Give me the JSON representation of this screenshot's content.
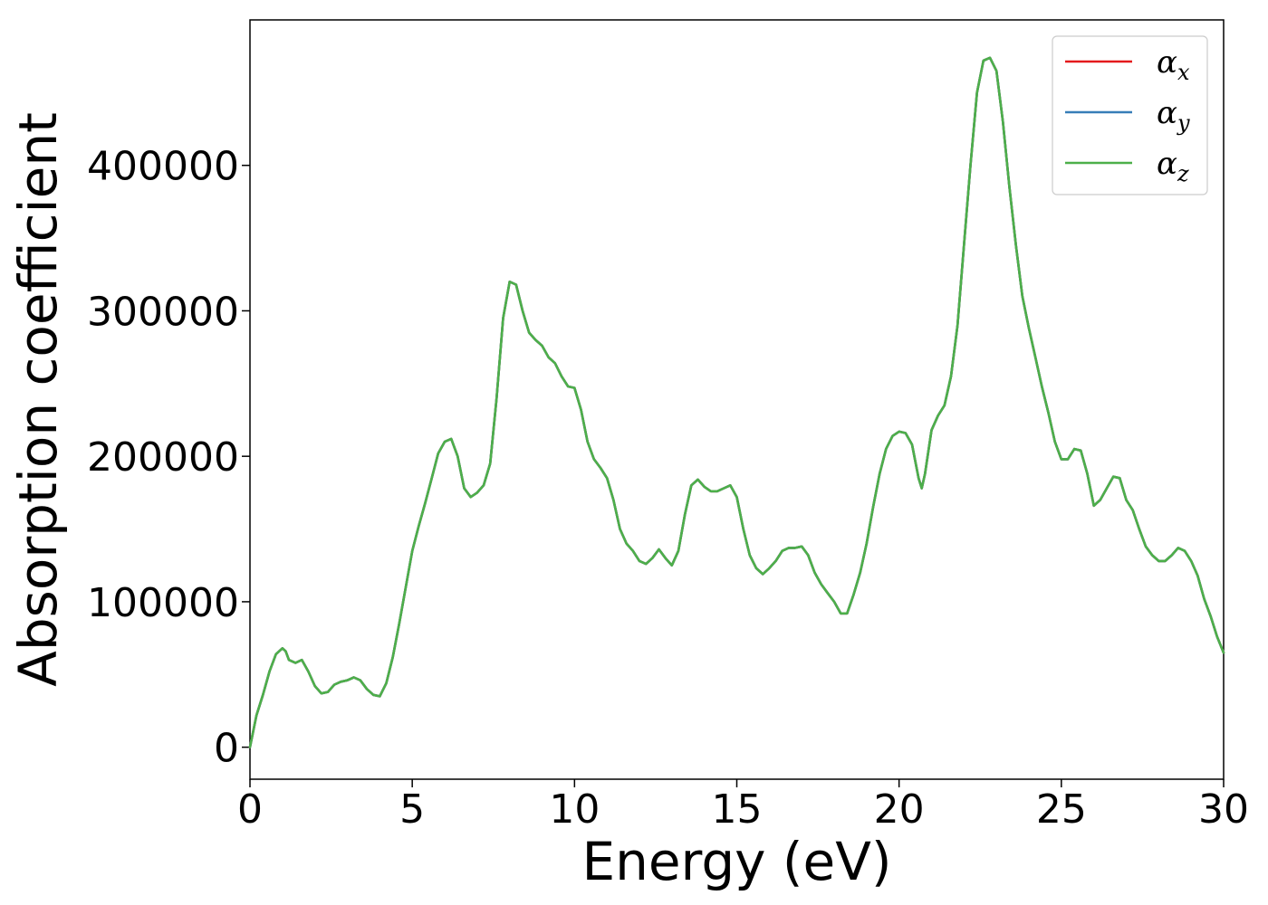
{
  "chart_data": {
    "type": "line",
    "xlabel": "Energy (eV)",
    "ylabel": "Absorption coefficient",
    "xlim": [
      0,
      30
    ],
    "ylim": [
      -22000,
      500000
    ],
    "x_ticks": [
      0,
      5,
      10,
      15,
      20,
      25,
      30
    ],
    "x_tick_labels": [
      "0",
      "5",
      "10",
      "15",
      "20",
      "25",
      "30"
    ],
    "y_ticks": [
      0,
      100000,
      200000,
      300000,
      400000
    ],
    "y_tick_labels": [
      "0",
      "100000",
      "200000",
      "300000",
      "400000"
    ],
    "grid": false,
    "legend_position": "top-right",
    "series": [
      {
        "legend_base": "α",
        "legend_sub": "x",
        "color": "#e41a1c",
        "x": [
          0,
          0.2,
          0.4,
          0.6,
          0.8,
          1.0,
          1.1,
          1.2,
          1.4,
          1.6,
          1.8,
          2.0,
          2.2,
          2.4,
          2.6,
          2.8,
          3.0,
          3.2,
          3.4,
          3.6,
          3.8,
          4.0,
          4.2,
          4.4,
          4.6,
          4.8,
          5.0,
          5.2,
          5.4,
          5.6,
          5.8,
          6.0,
          6.2,
          6.4,
          6.6,
          6.8,
          7.0,
          7.2,
          7.4,
          7.6,
          7.8,
          8.0,
          8.2,
          8.4,
          8.6,
          8.8,
          9.0,
          9.2,
          9.4,
          9.6,
          9.8,
          10.0,
          10.2,
          10.4,
          10.6,
          10.8,
          11.0,
          11.2,
          11.4,
          11.6,
          11.8,
          12.0,
          12.2,
          12.4,
          12.6,
          12.8,
          13.0,
          13.2,
          13.4,
          13.6,
          13.8,
          14.0,
          14.2,
          14.4,
          14.6,
          14.8,
          15.0,
          15.2,
          15.4,
          15.6,
          15.8,
          16.0,
          16.2,
          16.4,
          16.6,
          16.8,
          17.0,
          17.2,
          17.4,
          17.6,
          17.8,
          18.0,
          18.2,
          18.4,
          18.6,
          18.8,
          19.0,
          19.2,
          19.4,
          19.6,
          19.8,
          20.0,
          20.2,
          20.4,
          20.6,
          20.7,
          20.8,
          21.0,
          21.2,
          21.4,
          21.6,
          21.8,
          22.0,
          22.2,
          22.4,
          22.6,
          22.8,
          23.0,
          23.2,
          23.4,
          23.6,
          23.8,
          24.0,
          24.2,
          24.4,
          24.6,
          24.8,
          25.0,
          25.2,
          25.4,
          25.6,
          25.8,
          26.0,
          26.2,
          26.4,
          26.6,
          26.8,
          27.0,
          27.2,
          27.4,
          27.6,
          27.8,
          28.0,
          28.2,
          28.4,
          28.6,
          28.8,
          29.0,
          29.2,
          29.4,
          29.6,
          29.8,
          30.0
        ],
        "y": [
          0,
          22000,
          36000,
          52000,
          64000,
          68000,
          66000,
          60000,
          58000,
          60000,
          52000,
          42000,
          37000,
          38000,
          43000,
          45000,
          46000,
          48000,
          46000,
          40000,
          36000,
          35000,
          44000,
          62000,
          85000,
          110000,
          135000,
          152000,
          168000,
          185000,
          202000,
          210000,
          212000,
          200000,
          178000,
          172000,
          175000,
          180000,
          195000,
          240000,
          295000,
          320000,
          318000,
          300000,
          285000,
          280000,
          276000,
          268000,
          264000,
          255000,
          248000,
          247000,
          232000,
          210000,
          198000,
          192000,
          185000,
          170000,
          150000,
          140000,
          135000,
          128000,
          126000,
          130000,
          136000,
          130000,
          125000,
          135000,
          160000,
          180000,
          184000,
          179000,
          176000,
          176000,
          178000,
          180000,
          172000,
          150000,
          132000,
          123000,
          119000,
          123000,
          128000,
          135000,
          137000,
          137000,
          138000,
          132000,
          120000,
          112000,
          106000,
          100000,
          92000,
          92000,
          105000,
          120000,
          140000,
          165000,
          188000,
          205000,
          214000,
          217000,
          216000,
          208000,
          185000,
          178000,
          188000,
          218000,
          228000,
          235000,
          255000,
          290000,
          345000,
          400000,
          450000,
          472000,
          474000,
          465000,
          430000,
          385000,
          345000,
          310000,
          288000,
          268000,
          248000,
          230000,
          210000,
          198000,
          198000,
          205000,
          204000,
          188000,
          166000,
          170000,
          178000,
          186000,
          185000,
          170000,
          163000,
          150000,
          138000,
          132000,
          128000,
          128000,
          132000,
          137000,
          135000,
          128000,
          118000,
          102000,
          90000,
          76000,
          65000
        ]
      },
      {
        "legend_base": "α",
        "legend_sub": "y",
        "color": "#377eb8",
        "x": [
          0,
          0.2,
          0.4,
          0.6,
          0.8,
          1.0,
          1.1,
          1.2,
          1.4,
          1.6,
          1.8,
          2.0,
          2.2,
          2.4,
          2.6,
          2.8,
          3.0,
          3.2,
          3.4,
          3.6,
          3.8,
          4.0,
          4.2,
          4.4,
          4.6,
          4.8,
          5.0,
          5.2,
          5.4,
          5.6,
          5.8,
          6.0,
          6.2,
          6.4,
          6.6,
          6.8,
          7.0,
          7.2,
          7.4,
          7.6,
          7.8,
          8.0,
          8.2,
          8.4,
          8.6,
          8.8,
          9.0,
          9.2,
          9.4,
          9.6,
          9.8,
          10.0,
          10.2,
          10.4,
          10.6,
          10.8,
          11.0,
          11.2,
          11.4,
          11.6,
          11.8,
          12.0,
          12.2,
          12.4,
          12.6,
          12.8,
          13.0,
          13.2,
          13.4,
          13.6,
          13.8,
          14.0,
          14.2,
          14.4,
          14.6,
          14.8,
          15.0,
          15.2,
          15.4,
          15.6,
          15.8,
          16.0,
          16.2,
          16.4,
          16.6,
          16.8,
          17.0,
          17.2,
          17.4,
          17.6,
          17.8,
          18.0,
          18.2,
          18.4,
          18.6,
          18.8,
          19.0,
          19.2,
          19.4,
          19.6,
          19.8,
          20.0,
          20.2,
          20.4,
          20.6,
          20.7,
          20.8,
          21.0,
          21.2,
          21.4,
          21.6,
          21.8,
          22.0,
          22.2,
          22.4,
          22.6,
          22.8,
          23.0,
          23.2,
          23.4,
          23.6,
          23.8,
          24.0,
          24.2,
          24.4,
          24.6,
          24.8,
          25.0,
          25.2,
          25.4,
          25.6,
          25.8,
          26.0,
          26.2,
          26.4,
          26.6,
          26.8,
          27.0,
          27.2,
          27.4,
          27.6,
          27.8,
          28.0,
          28.2,
          28.4,
          28.6,
          28.8,
          29.0,
          29.2,
          29.4,
          29.6,
          29.8,
          30.0
        ],
        "y": [
          0,
          22000,
          36000,
          52000,
          64000,
          68000,
          66000,
          60000,
          58000,
          60000,
          52000,
          42000,
          37000,
          38000,
          43000,
          45000,
          46000,
          48000,
          46000,
          40000,
          36000,
          35000,
          44000,
          62000,
          85000,
          110000,
          135000,
          152000,
          168000,
          185000,
          202000,
          210000,
          212000,
          200000,
          178000,
          172000,
          175000,
          180000,
          195000,
          240000,
          295000,
          320000,
          318000,
          300000,
          285000,
          280000,
          276000,
          268000,
          264000,
          255000,
          248000,
          247000,
          232000,
          210000,
          198000,
          192000,
          185000,
          170000,
          150000,
          140000,
          135000,
          128000,
          126000,
          130000,
          136000,
          130000,
          125000,
          135000,
          160000,
          180000,
          184000,
          179000,
          176000,
          176000,
          178000,
          180000,
          172000,
          150000,
          132000,
          123000,
          119000,
          123000,
          128000,
          135000,
          137000,
          137000,
          138000,
          132000,
          120000,
          112000,
          106000,
          100000,
          92000,
          92000,
          105000,
          120000,
          140000,
          165000,
          188000,
          205000,
          214000,
          217000,
          216000,
          208000,
          185000,
          178000,
          188000,
          218000,
          228000,
          235000,
          255000,
          290000,
          345000,
          400000,
          450000,
          472000,
          474000,
          465000,
          430000,
          385000,
          345000,
          310000,
          288000,
          268000,
          248000,
          230000,
          210000,
          198000,
          198000,
          205000,
          204000,
          188000,
          166000,
          170000,
          178000,
          186000,
          185000,
          170000,
          163000,
          150000,
          138000,
          132000,
          128000,
          128000,
          132000,
          137000,
          135000,
          128000,
          118000,
          102000,
          90000,
          76000,
          65000
        ]
      },
      {
        "legend_base": "α",
        "legend_sub": "z",
        "color": "#4daf4a",
        "x": [
          0,
          0.2,
          0.4,
          0.6,
          0.8,
          1.0,
          1.1,
          1.2,
          1.4,
          1.6,
          1.8,
          2.0,
          2.2,
          2.4,
          2.6,
          2.8,
          3.0,
          3.2,
          3.4,
          3.6,
          3.8,
          4.0,
          4.2,
          4.4,
          4.6,
          4.8,
          5.0,
          5.2,
          5.4,
          5.6,
          5.8,
          6.0,
          6.2,
          6.4,
          6.6,
          6.8,
          7.0,
          7.2,
          7.4,
          7.6,
          7.8,
          8.0,
          8.2,
          8.4,
          8.6,
          8.8,
          9.0,
          9.2,
          9.4,
          9.6,
          9.8,
          10.0,
          10.2,
          10.4,
          10.6,
          10.8,
          11.0,
          11.2,
          11.4,
          11.6,
          11.8,
          12.0,
          12.2,
          12.4,
          12.6,
          12.8,
          13.0,
          13.2,
          13.4,
          13.6,
          13.8,
          14.0,
          14.2,
          14.4,
          14.6,
          14.8,
          15.0,
          15.2,
          15.4,
          15.6,
          15.8,
          16.0,
          16.2,
          16.4,
          16.6,
          16.8,
          17.0,
          17.2,
          17.4,
          17.6,
          17.8,
          18.0,
          18.2,
          18.4,
          18.6,
          18.8,
          19.0,
          19.2,
          19.4,
          19.6,
          19.8,
          20.0,
          20.2,
          20.4,
          20.6,
          20.7,
          20.8,
          21.0,
          21.2,
          21.4,
          21.6,
          21.8,
          22.0,
          22.2,
          22.4,
          22.6,
          22.8,
          23.0,
          23.2,
          23.4,
          23.6,
          23.8,
          24.0,
          24.2,
          24.4,
          24.6,
          24.8,
          25.0,
          25.2,
          25.4,
          25.6,
          25.8,
          26.0,
          26.2,
          26.4,
          26.6,
          26.8,
          27.0,
          27.2,
          27.4,
          27.6,
          27.8,
          28.0,
          28.2,
          28.4,
          28.6,
          28.8,
          29.0,
          29.2,
          29.4,
          29.6,
          29.8,
          30.0
        ],
        "y": [
          0,
          22000,
          36000,
          52000,
          64000,
          68000,
          66000,
          60000,
          58000,
          60000,
          52000,
          42000,
          37000,
          38000,
          43000,
          45000,
          46000,
          48000,
          46000,
          40000,
          36000,
          35000,
          44000,
          62000,
          85000,
          110000,
          135000,
          152000,
          168000,
          185000,
          202000,
          210000,
          212000,
          200000,
          178000,
          172000,
          175000,
          180000,
          195000,
          240000,
          295000,
          320000,
          318000,
          300000,
          285000,
          280000,
          276000,
          268000,
          264000,
          255000,
          248000,
          247000,
          232000,
          210000,
          198000,
          192000,
          185000,
          170000,
          150000,
          140000,
          135000,
          128000,
          126000,
          130000,
          136000,
          130000,
          125000,
          135000,
          160000,
          180000,
          184000,
          179000,
          176000,
          176000,
          178000,
          180000,
          172000,
          150000,
          132000,
          123000,
          119000,
          123000,
          128000,
          135000,
          137000,
          137000,
          138000,
          132000,
          120000,
          112000,
          106000,
          100000,
          92000,
          92000,
          105000,
          120000,
          140000,
          165000,
          188000,
          205000,
          214000,
          217000,
          216000,
          208000,
          185000,
          178000,
          188000,
          218000,
          228000,
          235000,
          255000,
          290000,
          345000,
          400000,
          450000,
          472000,
          474000,
          465000,
          430000,
          385000,
          345000,
          310000,
          288000,
          268000,
          248000,
          230000,
          210000,
          198000,
          198000,
          205000,
          204000,
          188000,
          166000,
          170000,
          178000,
          186000,
          185000,
          170000,
          163000,
          150000,
          138000,
          132000,
          128000,
          128000,
          132000,
          137000,
          135000,
          128000,
          118000,
          102000,
          90000,
          76000,
          65000
        ]
      }
    ]
  }
}
